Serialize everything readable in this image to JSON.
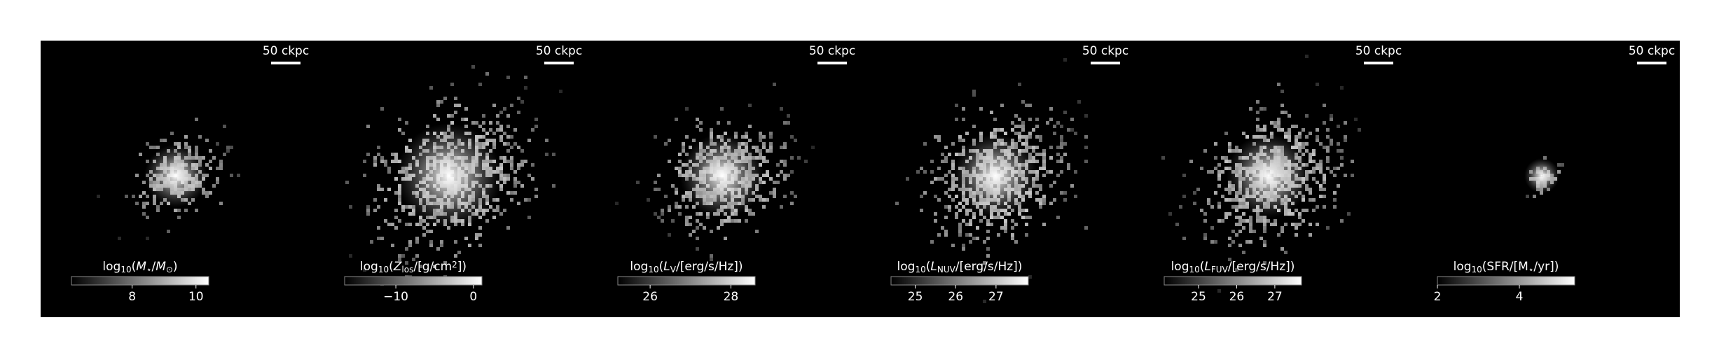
{
  "panels": [
    {
      "scale_bar": "50 ckpc",
      "label": [
        {
          "text": "log"
        },
        {
          "text": "10",
          "sub": true
        },
        {
          "text": "("
        },
        {
          "text": "M",
          "italic": true
        },
        {
          "text": "⋆",
          "sub": true
        },
        {
          "text": "/"
        },
        {
          "text": "M",
          "italic": true
        },
        {
          "text": "⊙",
          "sub": true
        },
        {
          "text": ")"
        }
      ],
      "cbar_lim": [
        6.1,
        10.4
      ],
      "ticks": [
        8,
        10
      ]
    },
    {
      "scale_bar": "50 ckpc",
      "label": [
        {
          "text": "log"
        },
        {
          "text": "10",
          "sub": true
        },
        {
          "text": "("
        },
        {
          "text": "Z",
          "italic": true
        },
        {
          "text": "los",
          "sub": true
        },
        {
          "text": "/[g/cm"
        },
        {
          "text": "2",
          "sup": true
        },
        {
          "text": "])"
        }
      ],
      "cbar_lim": [
        -16.6,
        1.1
      ],
      "ticks": [
        {
          "value": -10,
          "label": "−10"
        },
        0
      ]
    },
    {
      "scale_bar": "50 ckpc",
      "label": [
        {
          "text": "log"
        },
        {
          "text": "10",
          "sub": true
        },
        {
          "text": "("
        },
        {
          "text": "L",
          "italic": true
        },
        {
          "text": "V",
          "sub": true
        },
        {
          "text": "/[erg/s/Hz])"
        }
      ],
      "cbar_lim": [
        25.2,
        28.6
      ],
      "ticks": [
        26,
        28
      ]
    },
    {
      "scale_bar": "50 ckpc",
      "label": [
        {
          "text": "log"
        },
        {
          "text": "10",
          "sub": true
        },
        {
          "text": "("
        },
        {
          "text": "L",
          "italic": true
        },
        {
          "text": "NUV",
          "sub": true
        },
        {
          "text": "/[erg/s/Hz])"
        }
      ],
      "cbar_lim": [
        24.4,
        27.8
      ],
      "ticks": [
        25,
        26,
        27
      ]
    },
    {
      "scale_bar": "50 ckpc",
      "label": [
        {
          "text": "log"
        },
        {
          "text": "10",
          "sub": true
        },
        {
          "text": "("
        },
        {
          "text": "L",
          "italic": true
        },
        {
          "text": "FUV",
          "sub": true
        },
        {
          "text": "/[erg/s/Hz])"
        }
      ],
      "cbar_lim": [
        24.1,
        27.7
      ],
      "ticks": [
        25,
        26,
        27
      ]
    },
    {
      "scale_bar": "50 ckpc",
      "label": [
        {
          "text": "log"
        },
        {
          "text": "10",
          "sub": true
        },
        {
          "text": "(SFR/[M"
        },
        {
          "text": "⋆",
          "sub": true
        },
        {
          "text": "/yr])"
        }
      ],
      "cbar_lim": [
        2,
        5.35
      ],
      "ticks": [
        2,
        4
      ]
    }
  ]
}
